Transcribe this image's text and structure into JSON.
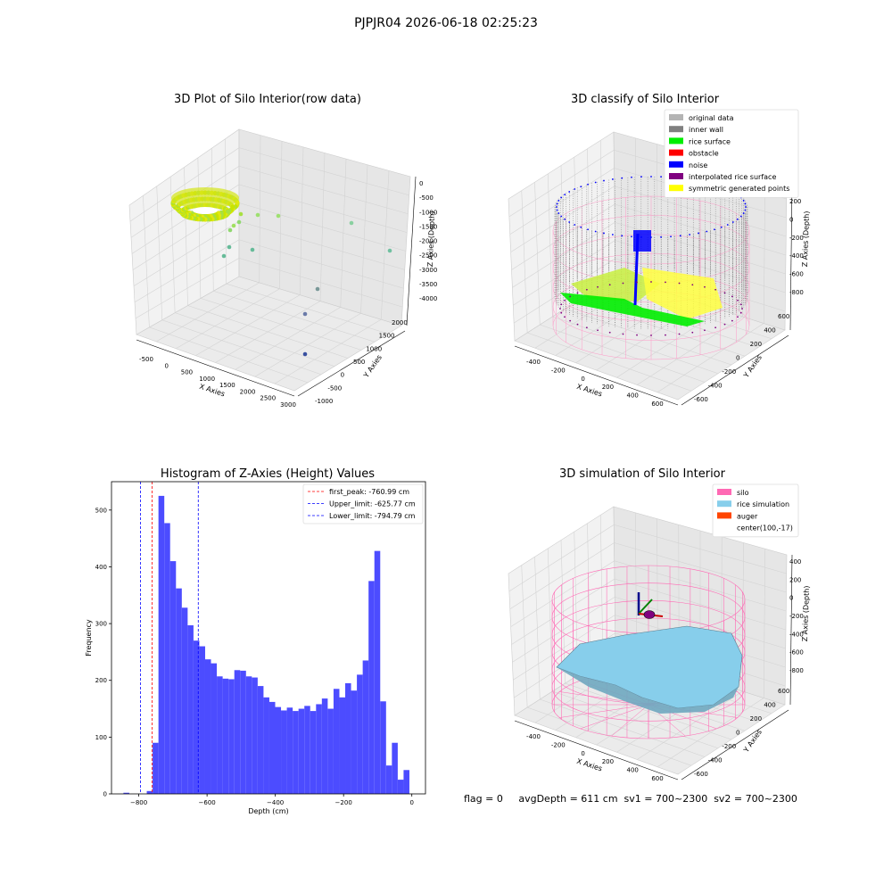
{
  "suptitle": "PJPJR04 2026-06-18 02:25:23",
  "footer": "flag = 0     avgDepth = 611 cm  sv1 = 700~2300  sv2 = 700~2300",
  "chart_data": [
    {
      "type": "scatter",
      "title": "3D Plot of Silo Interior(row data)",
      "xlabel": "X Axies",
      "ylabel": "Y Axies",
      "zlabel": "Z Axies (Depth)",
      "xticks": [
        "-500",
        "0",
        "500",
        "1000",
        "1500",
        "2000",
        "2500",
        "3000"
      ],
      "yticks": [
        "-1000",
        "-500",
        "0",
        "500",
        "1000",
        "1500",
        "2000"
      ],
      "zticks": [
        "0",
        "-500",
        "-1000",
        "-1500",
        "-2000",
        "-2500",
        "-3000",
        "-3500",
        "-4000"
      ]
    },
    {
      "type": "scatter",
      "title": "3D classify of Silo Interior",
      "xlabel": "X Axies",
      "ylabel": "Y Axies",
      "zlabel": "Z Axies (Depth)",
      "xticks": [
        "-400",
        "-200",
        "0",
        "200",
        "400",
        "600"
      ],
      "yticks": [
        "-600",
        "-400",
        "-200",
        "0",
        "200",
        "400",
        "600"
      ],
      "zticks": [
        "200",
        "0",
        "-200",
        "-400",
        "-600",
        "-800"
      ],
      "legend": [
        {
          "label": "original data",
          "color": "#b4b4b4"
        },
        {
          "label": "inner wall",
          "color": "#808080"
        },
        {
          "label": "rice surface",
          "color": "#00ee00"
        },
        {
          "label": "obstacle",
          "color": "#ff0000"
        },
        {
          "label": "noise",
          "color": "#0000ff"
        },
        {
          "label": "interpolated rice surface",
          "color": "#800080"
        },
        {
          "label": "symmetric generated points",
          "color": "#ffff00"
        }
      ]
    },
    {
      "type": "bar",
      "title": "Histogram of Z-Axies (Height) Values",
      "xlabel": "Depth (cm)",
      "ylabel": "Frequency",
      "xlim": [
        -880,
        40
      ],
      "ylim": [
        0,
        550
      ],
      "xticks": [
        -800,
        -600,
        -400,
        -200,
        0
      ],
      "yticks": [
        0,
        100,
        200,
        300,
        400,
        500
      ],
      "bin_start": -845,
      "bin_width": 17.1,
      "values": [
        2,
        0,
        0,
        0,
        5,
        90,
        525,
        477,
        410,
        362,
        328,
        297,
        270,
        260,
        237,
        230,
        207,
        203,
        202,
        218,
        217,
        207,
        205,
        190,
        170,
        162,
        153,
        147,
        152,
        146,
        150,
        155,
        146,
        158,
        168,
        150,
        185,
        170,
        195,
        182,
        210,
        235,
        375,
        428,
        163,
        50,
        90,
        25,
        42
      ],
      "lines": [
        {
          "label": "first_peak: -760.99 cm",
          "value": -760.99,
          "color": "#ff0000"
        },
        {
          "label": "Upper_limit: -625.77 cm",
          "value": -625.77,
          "color": "#0000ff"
        },
        {
          "label": "Lower_limit: -794.79 cm",
          "value": -794.79,
          "color": "#0000ff"
        }
      ]
    },
    {
      "type": "surface",
      "title": "3D simulation of Silo Interior",
      "xlabel": "X Axies",
      "ylabel": "Y Axies",
      "zlabel": "Z Axies (Depth)",
      "xticks": [
        "-400",
        "-200",
        "0",
        "200",
        "400",
        "600"
      ],
      "yticks": [
        "-600",
        "-400",
        "-200",
        "0",
        "200",
        "400",
        "600"
      ],
      "zticks": [
        "400",
        "200",
        "0",
        "-200",
        "-400",
        "-600",
        "-800"
      ],
      "legend": [
        {
          "label": "silo",
          "color": "#ff69b4"
        },
        {
          "label": "rice simulation",
          "color": "#87ceeb"
        },
        {
          "label": "auger",
          "color": "#ff4500"
        },
        {
          "label": "center(100,-17)",
          "color": ""
        }
      ]
    }
  ]
}
